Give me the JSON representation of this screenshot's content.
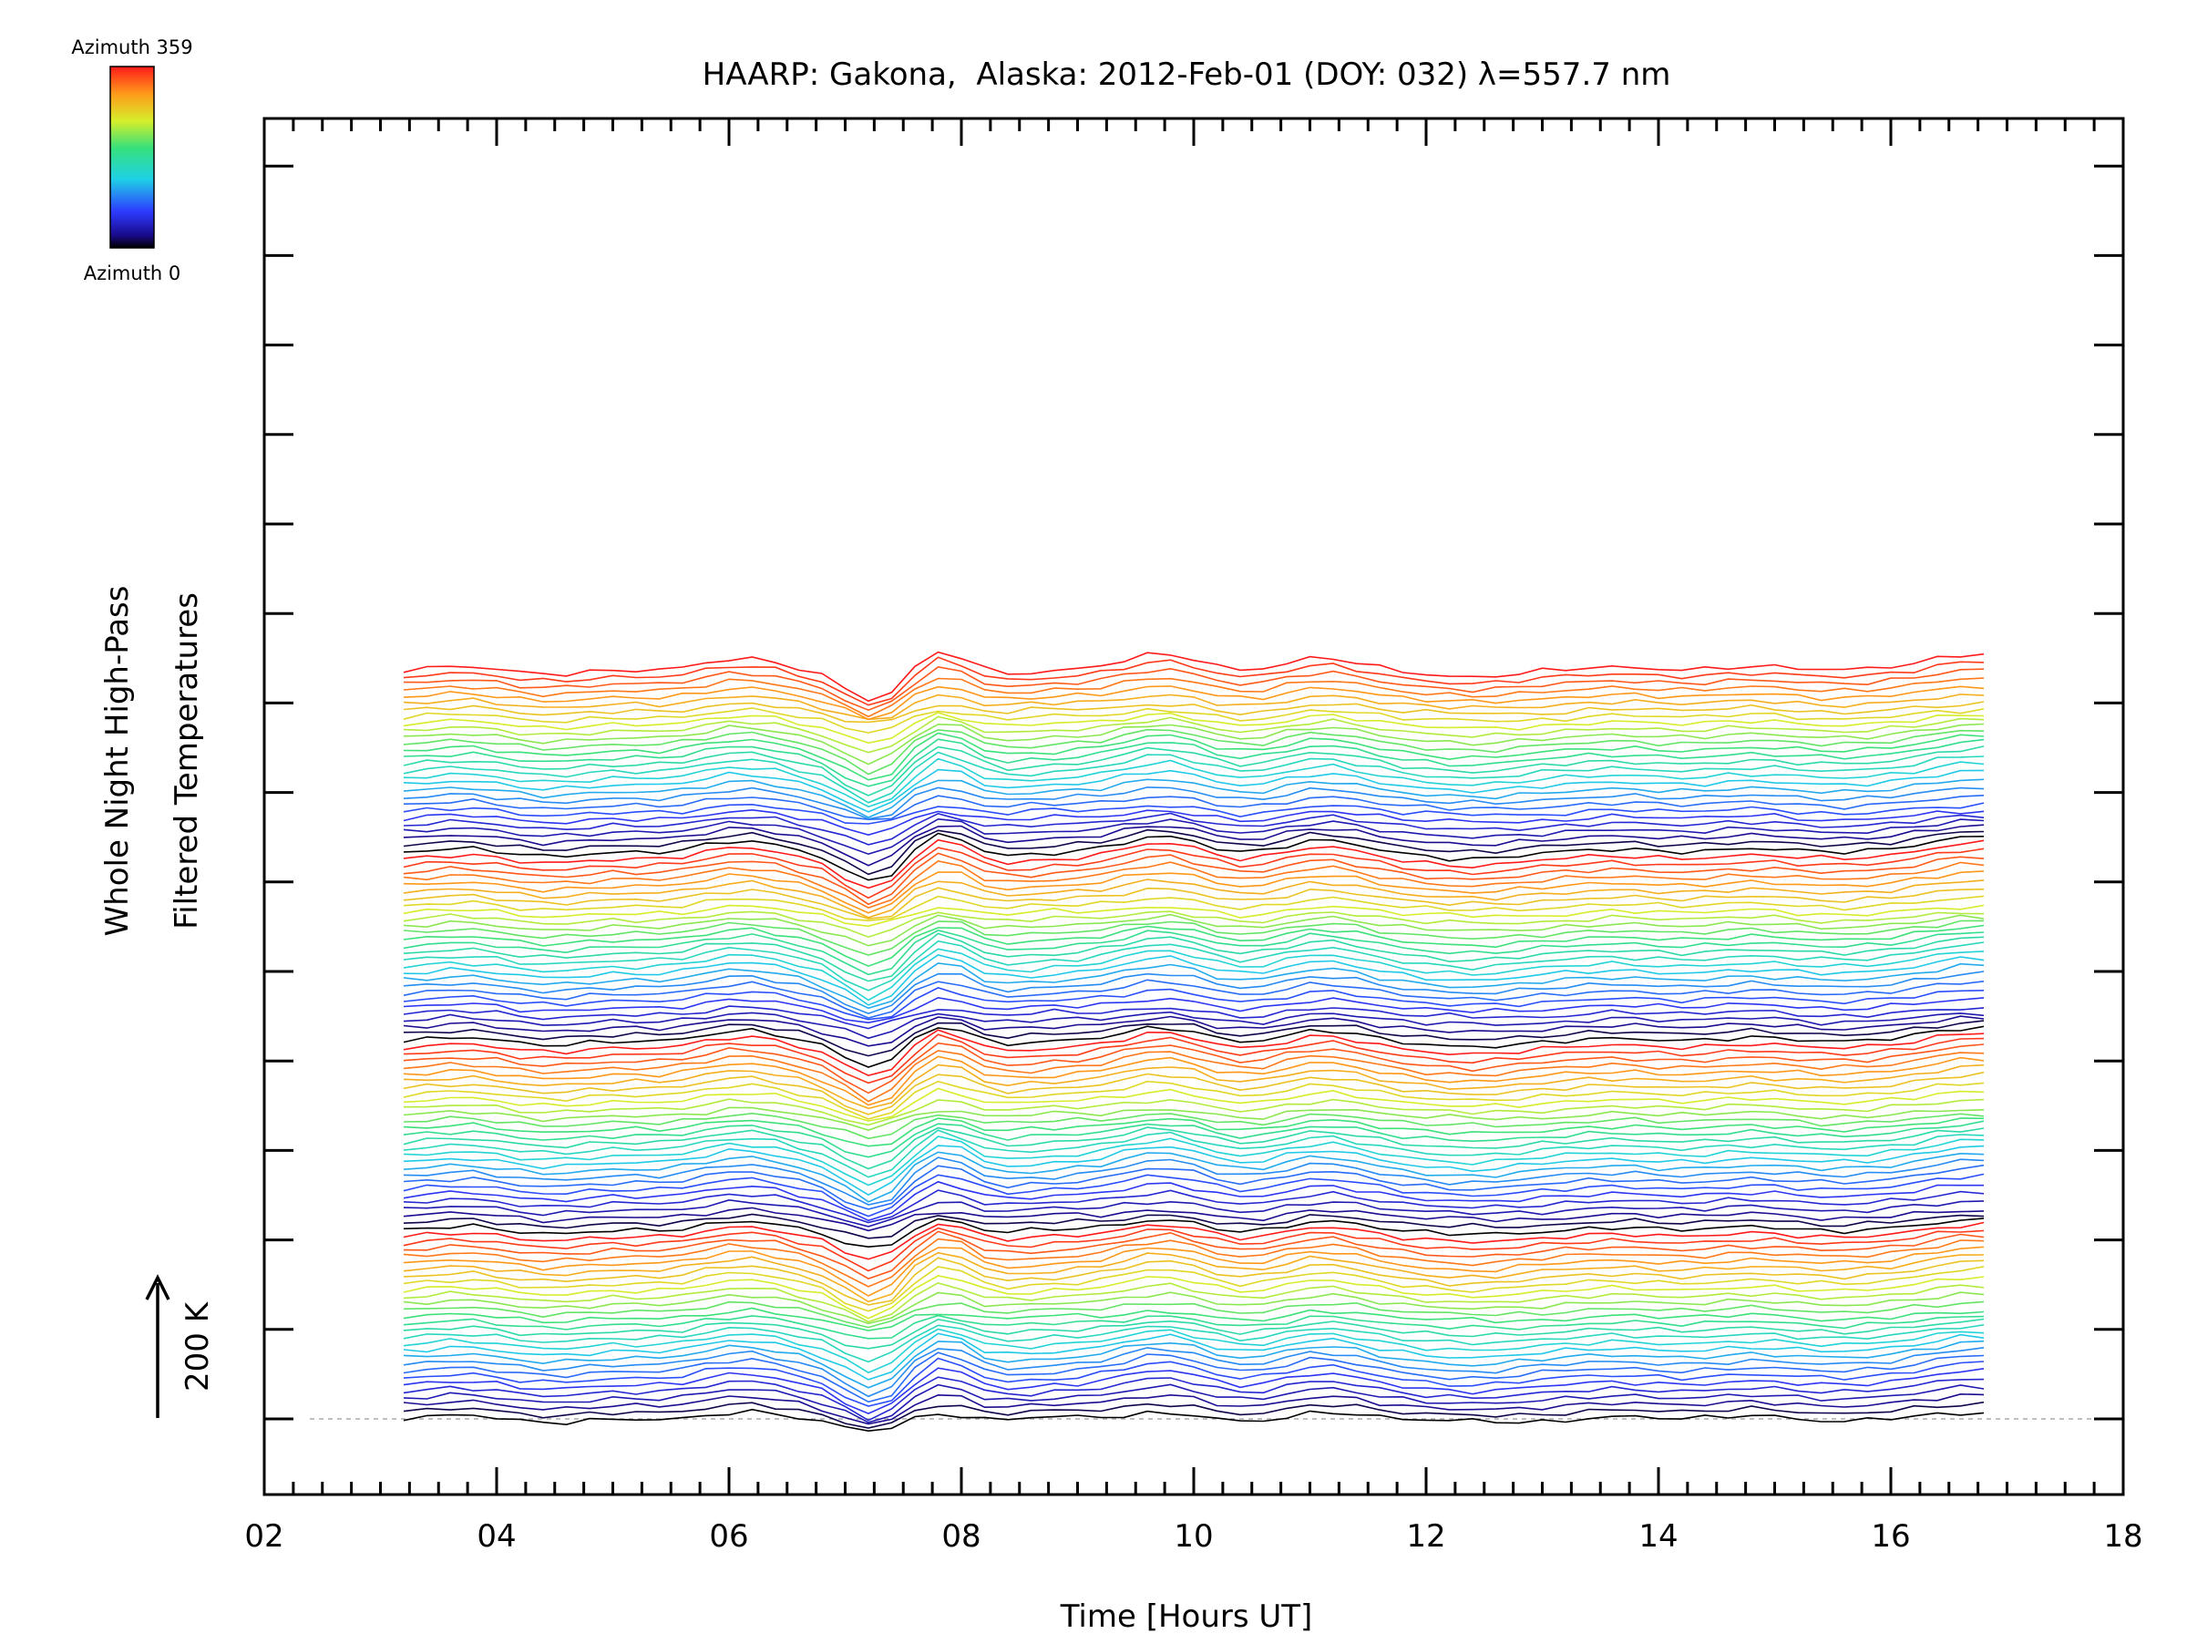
{
  "chart_data": {
    "type": "line",
    "title": "HAARP: Gakona,  Alaska: 2012-Feb-01 (DOY: 032) λ=557.7 nm",
    "xlabel": "Time [Hours UT]",
    "ylabel_line1": "Whole Night High-Pass",
    "ylabel_line2": "Filtered Temperatures",
    "xlim": [
      2,
      18
    ],
    "xticks": [
      "02",
      "04",
      "06",
      "08",
      "10",
      "12",
      "14",
      "16",
      "18"
    ],
    "scale_label": "200 K",
    "scale_value_K": 200,
    "colorbar": {
      "top_label": "Azimuth 359",
      "bottom_label": "Azimuth 0",
      "colormap": "rainbow"
    },
    "stacked_traces": 112,
    "azimuth_range": [
      0,
      359
    ],
    "trace_spacing_K": 10,
    "x_start": 3.2,
    "x_end": 16.8,
    "time_step_h": 0.2,
    "features": [
      {
        "t": 7.25,
        "dT": -45
      },
      {
        "t": 7.85,
        "dT": 35
      },
      {
        "t": 6.0,
        "dT": 12
      },
      {
        "t": 9.7,
        "dT": 25
      },
      {
        "t": 8.6,
        "dT": -10
      },
      {
        "t": 11.0,
        "dT": 15
      },
      {
        "t": 12.4,
        "dT": -15
      },
      {
        "t": 13.0,
        "dT": 10
      },
      {
        "t": 15.5,
        "dT": 8
      },
      {
        "t": 16.7,
        "dT": 25
      }
    ]
  }
}
